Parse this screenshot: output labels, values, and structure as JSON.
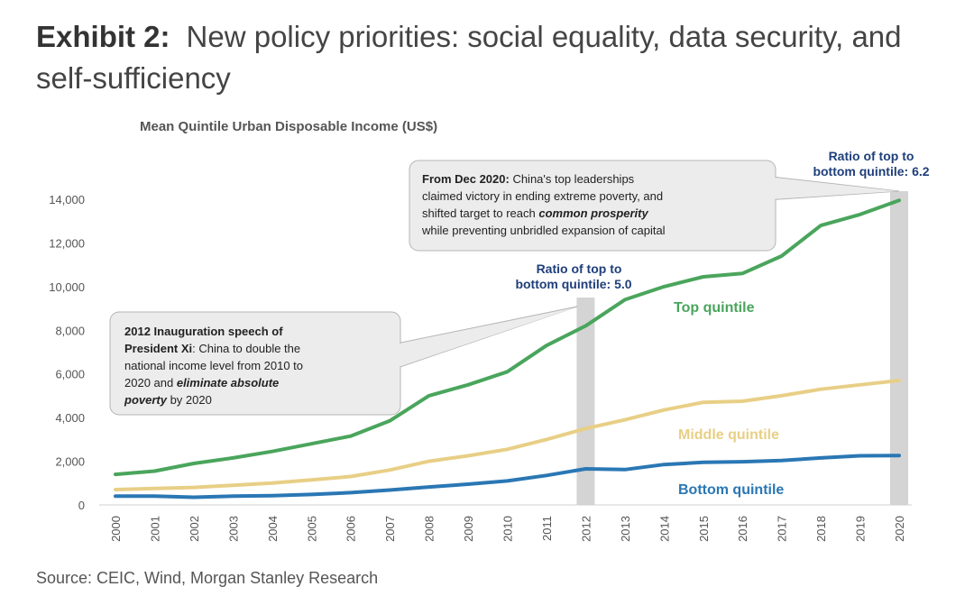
{
  "exhibit": {
    "number": "Exhibit 2:",
    "title": "New policy priorities: social equality, data security, and self-sufficiency"
  },
  "source": "Source: CEIC, Wind, Morgan Stanley Research",
  "colors": {
    "top": "#4aa55c",
    "middle": "#e8cf86",
    "bottom": "#2a77b4",
    "highlight": "#d4d4d4",
    "ratio_text": "#1f3f7a"
  },
  "chart_data": {
    "type": "line",
    "title": "Mean Quintile Urban Disposable Income (US$)",
    "xlabel": "",
    "ylabel": "",
    "ylim": [
      0,
      14000
    ],
    "yticks": [
      0,
      2000,
      4000,
      6000,
      8000,
      10000,
      12000,
      14000
    ],
    "ytick_labels": [
      "0",
      "2,000",
      "4,000",
      "6,000",
      "8,000",
      "10,000",
      "12,000",
      "14,000"
    ],
    "grid": false,
    "x": [
      "2000",
      "2001",
      "2002",
      "2003",
      "2004",
      "2005",
      "2006",
      "2007",
      "2008",
      "2009",
      "2010",
      "2011",
      "2012",
      "2013",
      "2014",
      "2015",
      "2016",
      "2017",
      "2018",
      "2019",
      "2020"
    ],
    "series": [
      {
        "name": "Top quintile",
        "color": "#4aa55c",
        "values": [
          1400,
          1550,
          1900,
          2150,
          2450,
          2800,
          3150,
          3850,
          5000,
          5500,
          6100,
          7300,
          8200,
          9400,
          10000,
          10450,
          10600,
          11400,
          12800,
          13300,
          13950
        ]
      },
      {
        "name": "Middle quintile",
        "color": "#e8cf86",
        "values": [
          700,
          750,
          800,
          900,
          1000,
          1150,
          1300,
          1600,
          2000,
          2250,
          2550,
          3000,
          3500,
          3900,
          4350,
          4700,
          4750,
          5000,
          5300,
          5500,
          5700
        ]
      },
      {
        "name": "Bottom quintile",
        "color": "#2a77b4",
        "values": [
          400,
          400,
          350,
          400,
          420,
          480,
          560,
          680,
          820,
          950,
          1100,
          1350,
          1650,
          1620,
          1850,
          1950,
          1980,
          2030,
          2150,
          2250,
          2260
        ]
      }
    ],
    "highlight_years": [
      "2012",
      "2020"
    ],
    "ratios": [
      {
        "line1": "Ratio of top to",
        "line2": "bottom quintile: 5.0"
      },
      {
        "line1": "Ratio of top to",
        "line2": "bottom quintile: 6.2"
      }
    ],
    "annotations": {
      "box_2012": {
        "bold1": "2012 Inauguration speech of",
        "bold2": "President Xi",
        "text2": ": China to double the",
        "text3": "national income level from 2010 to",
        "text4a": "2020 and ",
        "bold4": "eliminate absolute",
        "bold5": "poverty",
        "text5": " by 2020"
      },
      "box_2020": {
        "bold1": "From Dec 2020:",
        "text1": " China's top leaderships",
        "text2": "claimed victory in ending extreme poverty, and",
        "text3a": "shifted target to reach ",
        "bold3": "common prosperity",
        "text4": "while preventing unbridled expansion of capital"
      }
    }
  }
}
